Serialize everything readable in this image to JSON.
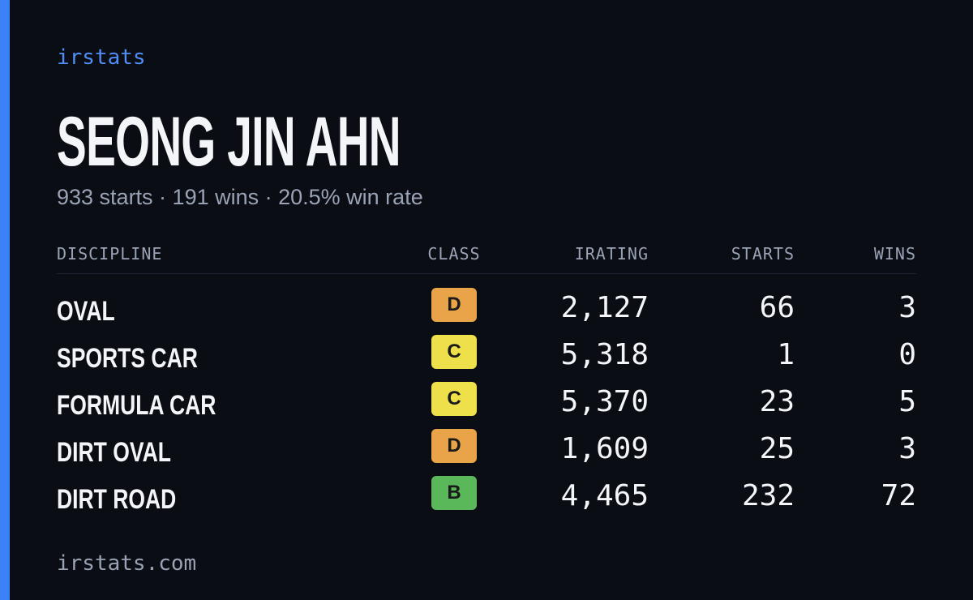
{
  "brand": "irstats",
  "driver": {
    "name": "SEONG JIN AHN",
    "summary": "933 starts · 191 wins · 20.5% win rate"
  },
  "table": {
    "headers": [
      "DISCIPLINE",
      "CLASS",
      "IRATING",
      "STARTS",
      "WINS"
    ],
    "rows": [
      {
        "discipline": "OVAL",
        "class": "D",
        "class_color": "#e9a449",
        "irating": "2,127",
        "starts": 66,
        "wins": 3
      },
      {
        "discipline": "SPORTS CAR",
        "class": "C",
        "class_color": "#ede04a",
        "irating": "5,318",
        "starts": 1,
        "wins": 0
      },
      {
        "discipline": "FORMULA CAR",
        "class": "C",
        "class_color": "#ede04a",
        "irating": "5,370",
        "starts": 23,
        "wins": 5
      },
      {
        "discipline": "DIRT OVAL",
        "class": "D",
        "class_color": "#e9a449",
        "irating": "1,609",
        "starts": 25,
        "wins": 3
      },
      {
        "discipline": "DIRT ROAD",
        "class": "B",
        "class_color": "#5bb85a",
        "irating": "4,465",
        "starts": 232,
        "wins": 72
      }
    ]
  },
  "footer": "irstats.com"
}
